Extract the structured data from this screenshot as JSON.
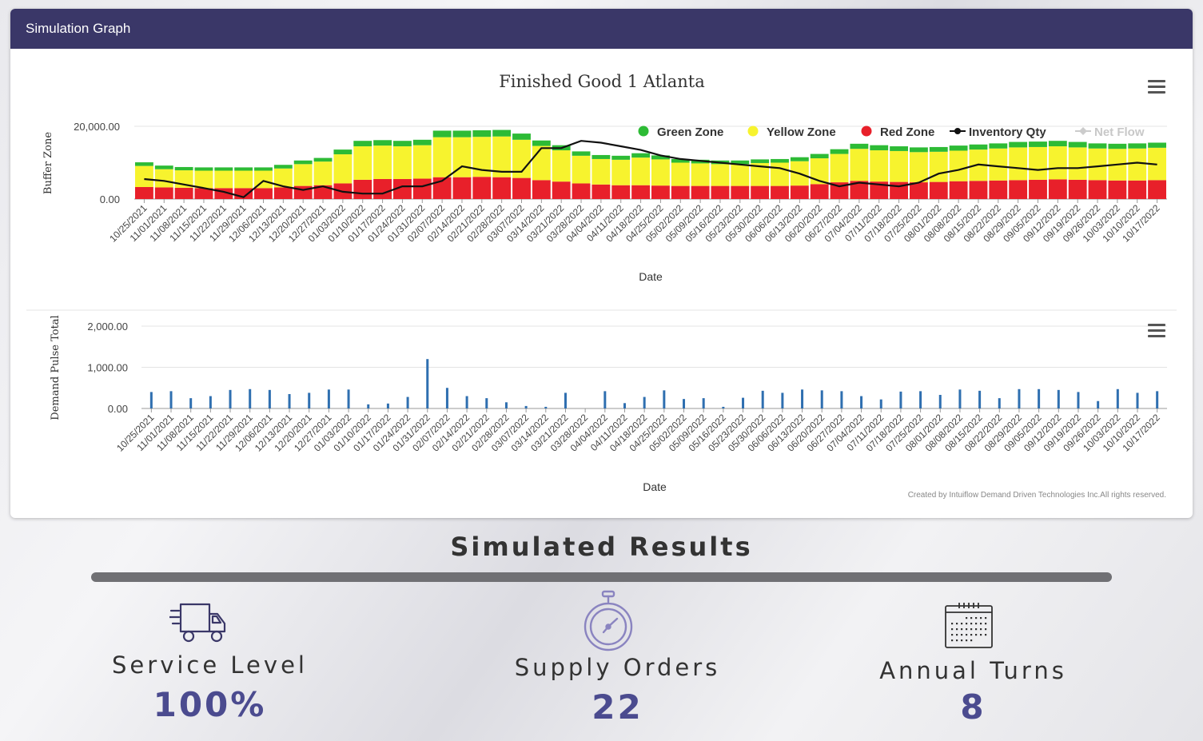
{
  "panel": {
    "title": "Simulation Graph"
  },
  "charts": {
    "credits": "Created by Intuiflow Demand Driven Technologies Inc.All rights reserved."
  },
  "chart_data": [
    {
      "type": "bar",
      "title": "Finished Good 1 Atlanta",
      "xlabel": "Date",
      "ylabel": "Buffer Zone",
      "yticks": [
        "0.00",
        "20,000.00"
      ],
      "ylim": [
        0,
        20000
      ],
      "legend": [
        "Green Zone",
        "Yellow Zone",
        "Red Zone",
        "Inventory Qty",
        "Net Flow"
      ],
      "legend_position": "top-right",
      "stacked": true,
      "categories": [
        "10/25/2021",
        "11/01/2021",
        "11/08/2021",
        "11/15/2021",
        "11/22/2021",
        "11/29/2021",
        "12/06/2021",
        "12/13/2021",
        "12/20/2021",
        "12/27/2021",
        "01/03/2022",
        "01/10/2022",
        "01/17/2022",
        "01/24/2022",
        "01/31/2022",
        "02/07/2022",
        "02/14/2022",
        "02/21/2022",
        "02/28/2022",
        "03/07/2022",
        "03/14/2022",
        "03/21/2022",
        "03/28/2022",
        "04/04/2022",
        "04/11/2022",
        "04/18/2022",
        "04/25/2022",
        "05/02/2022",
        "05/09/2022",
        "05/16/2022",
        "05/23/2022",
        "05/30/2022",
        "06/06/2022",
        "06/13/2022",
        "06/20/2022",
        "06/27/2022",
        "07/04/2022",
        "07/11/2022",
        "07/18/2022",
        "07/25/2022",
        "08/01/2022",
        "08/08/2022",
        "08/15/2022",
        "08/22/2022",
        "08/29/2022",
        "09/05/2022",
        "09/12/2022",
        "09/19/2022",
        "09/26/2022",
        "10/03/2022",
        "10/10/2022",
        "10/17/2022"
      ],
      "series": [
        {
          "name": "Red Zone",
          "color": "#e8202a",
          "values": [
            3300,
            3200,
            3100,
            3000,
            3000,
            3000,
            3000,
            3200,
            3600,
            3800,
            4300,
            5300,
            5500,
            5500,
            5600,
            6000,
            6000,
            6100,
            6000,
            5800,
            5200,
            4800,
            4300,
            4000,
            3800,
            3800,
            3700,
            3600,
            3600,
            3600,
            3600,
            3600,
            3600,
            3700,
            4100,
            4600,
            5000,
            4800,
            4700,
            4600,
            4700,
            4900,
            5000,
            5100,
            5200,
            5300,
            5400,
            5300,
            5200,
            5100,
            5100,
            5200
          ]
        },
        {
          "name": "Yellow Zone",
          "color": "#f7f32e",
          "values": [
            5800,
            5000,
            4800,
            4800,
            4800,
            4800,
            4800,
            5200,
            6000,
            6500,
            8000,
            9200,
            9200,
            9000,
            9200,
            11000,
            11000,
            11000,
            11200,
            10500,
            9400,
            8600,
            7600,
            7000,
            7000,
            7600,
            7200,
            6400,
            6200,
            6000,
            6000,
            6300,
            6400,
            6700,
            7100,
            7800,
            8800,
            8600,
            8500,
            8300,
            8300,
            8400,
            8600,
            8800,
            9000,
            9000,
            9100,
            8900,
            8700,
            8700,
            8800,
            8900
          ]
        },
        {
          "name": "Green Zone",
          "color": "#2dbb35",
          "values": [
            1000,
            1000,
            900,
            900,
            900,
            900,
            900,
            1000,
            1000,
            1000,
            1300,
            1500,
            1500,
            1500,
            1500,
            1800,
            1800,
            1800,
            1800,
            1700,
            1500,
            1400,
            1200,
            1100,
            1100,
            1200,
            1100,
            1000,
            1000,
            1000,
            1000,
            1000,
            1000,
            1100,
            1200,
            1300,
            1400,
            1400,
            1300,
            1300,
            1300,
            1400,
            1400,
            1400,
            1500,
            1500,
            1500,
            1500,
            1400,
            1400,
            1400,
            1400
          ]
        },
        {
          "name": "Inventory Qty",
          "type": "line",
          "color": "#111111",
          "values": [
            5500,
            5000,
            4000,
            3000,
            2000,
            500,
            5000,
            3500,
            2500,
            3500,
            2000,
            1500,
            1500,
            3500,
            3500,
            5000,
            9000,
            8000,
            7500,
            7500,
            14000,
            14000,
            16000,
            15500,
            14500,
            13500,
            12000,
            11000,
            10500,
            10000,
            9500,
            9000,
            8500,
            7000,
            5000,
            3500,
            4500,
            4000,
            3500,
            4500,
            7000,
            8000,
            9500,
            9000,
            8500,
            8000,
            8500,
            8500,
            9000,
            9500,
            10000,
            9500
          ]
        }
      ]
    },
    {
      "type": "bar",
      "xlabel": "Date",
      "ylabel": "Demand Pulse Total",
      "yticks": [
        "0.00",
        "1,000.00",
        "2,000.00"
      ],
      "ylim": [
        0,
        2000
      ],
      "categories": [
        "10/25/2021",
        "11/01/2021",
        "11/08/2021",
        "11/15/2021",
        "11/22/2021",
        "11/29/2021",
        "12/06/2021",
        "12/13/2021",
        "12/20/2021",
        "12/27/2021",
        "01/03/2022",
        "01/10/2022",
        "01/17/2022",
        "01/24/2022",
        "01/31/2022",
        "02/07/2022",
        "02/14/2022",
        "02/21/2022",
        "02/28/2022",
        "03/07/2022",
        "03/14/2022",
        "03/21/2022",
        "03/28/2022",
        "04/04/2022",
        "04/11/2022",
        "04/18/2022",
        "04/25/2022",
        "05/02/2022",
        "05/09/2022",
        "05/16/2022",
        "05/23/2022",
        "05/30/2022",
        "06/06/2022",
        "06/13/2022",
        "06/20/2022",
        "06/27/2022",
        "07/04/2022",
        "07/11/2022",
        "07/18/2022",
        "07/25/2022",
        "08/01/2022",
        "08/08/2022",
        "08/15/2022",
        "08/22/2022",
        "08/29/2022",
        "09/05/2022",
        "09/12/2022",
        "09/19/2022",
        "09/26/2022",
        "10/03/2022",
        "10/10/2022",
        "10/17/2022"
      ],
      "series": [
        {
          "name": "Demand Pulse Total",
          "color": "#2f6fb0",
          "values": [
            400,
            420,
            250,
            300,
            450,
            470,
            450,
            350,
            380,
            460,
            460,
            100,
            120,
            280,
            1200,
            500,
            300,
            250,
            150,
            60,
            40,
            380,
            0,
            420,
            130,
            280,
            440,
            230,
            250,
            40,
            260,
            430,
            380,
            460,
            440,
            420,
            300,
            220,
            410,
            420,
            330,
            460,
            430,
            250,
            470,
            470,
            450,
            400,
            180,
            470,
            380,
            420
          ]
        }
      ]
    }
  ],
  "results": {
    "title": "Simulated Results",
    "metrics": [
      {
        "label": "Service Level",
        "value": "100%",
        "icon": "delivery-truck-icon"
      },
      {
        "label": "Supply Orders",
        "value": "22",
        "icon": "stopwatch-icon"
      },
      {
        "label": "Annual Turns",
        "value": "8",
        "icon": "calendar-icon"
      }
    ]
  },
  "colors": {
    "header": "#3a3768",
    "accent": "#4b4b8f",
    "bar": "#707074"
  }
}
